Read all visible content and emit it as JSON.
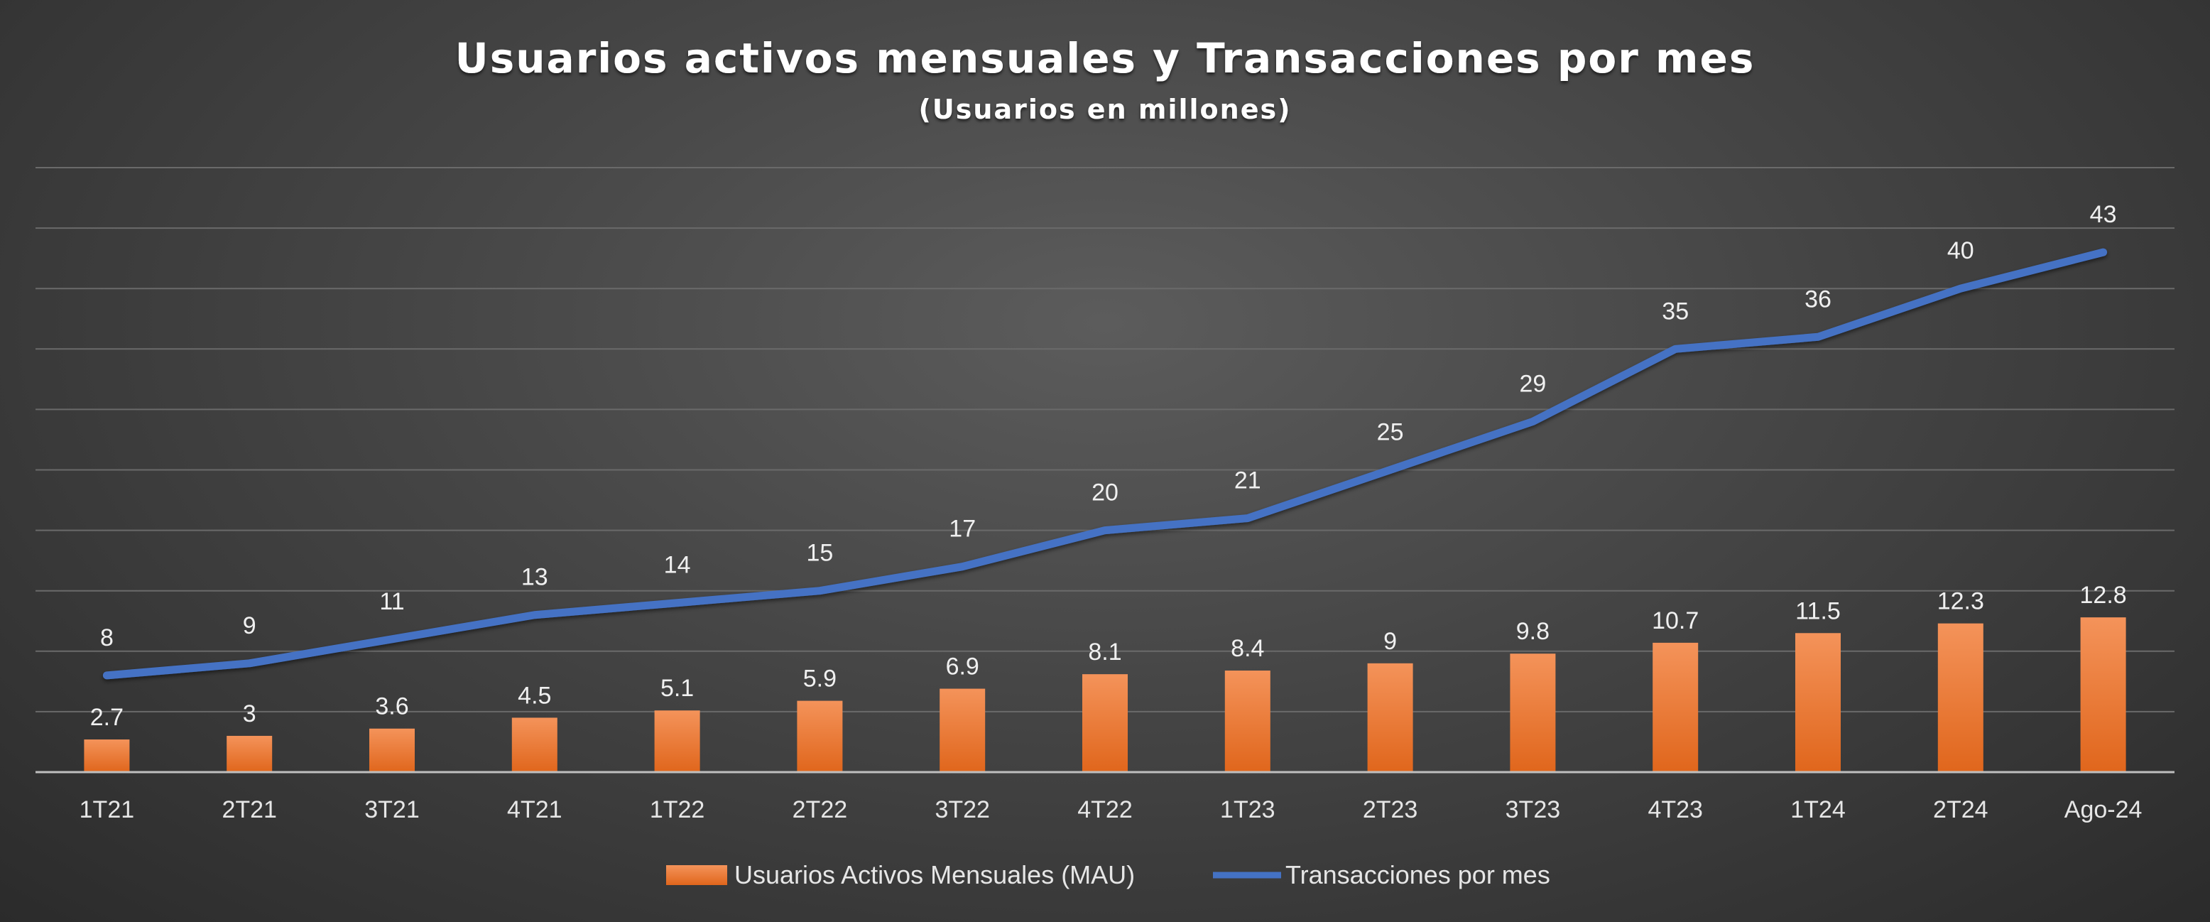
{
  "chart_data": {
    "type": "bar",
    "title": "Usuarios activos mensuales y Transacciones por mes",
    "subtitle": "(Usuarios en millones)",
    "categories": [
      "1T21",
      "2T21",
      "3T21",
      "4T21",
      "1T22",
      "2T22",
      "3T22",
      "4T22",
      "1T23",
      "2T23",
      "3T23",
      "4T23",
      "1T24",
      "2T24",
      "Ago-24"
    ],
    "series": [
      {
        "name": "Usuarios Activos Mensuales (MAU)",
        "type": "bar",
        "color": "#ed7d31",
        "values": [
          2.7,
          3,
          3.6,
          4.5,
          5.1,
          5.9,
          6.9,
          8.1,
          8.4,
          9,
          9.8,
          10.7,
          11.5,
          12.3,
          12.8
        ]
      },
      {
        "name": "Transacciones por mes",
        "type": "line",
        "color": "#4472c4",
        "values": [
          8,
          9,
          11,
          13,
          14,
          15,
          17,
          20,
          21,
          25,
          29,
          35,
          36,
          40,
          43
        ]
      }
    ],
    "ylim": [
      0,
      50
    ],
    "grid": true,
    "legend": "bottom",
    "xlabel": "",
    "ylabel": ""
  }
}
